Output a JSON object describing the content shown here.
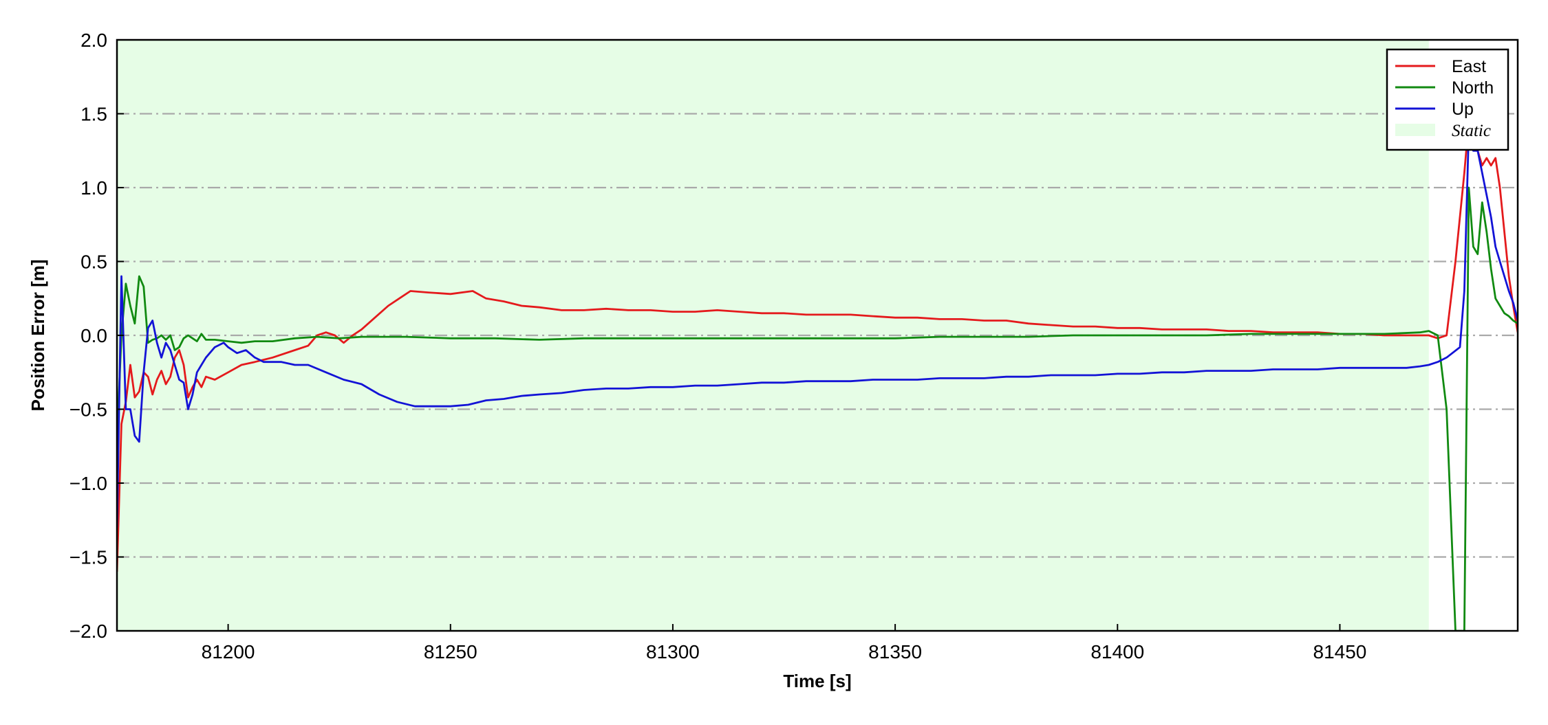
{
  "chart_data": {
    "type": "line",
    "xlabel": "Time [s]",
    "ylabel": "Position Error [m]",
    "xlim": [
      81175,
      81490
    ],
    "ylim": [
      -2.0,
      2.0
    ],
    "xticks": [
      81200,
      81250,
      81300,
      81350,
      81400,
      81450
    ],
    "xtick_labels": [
      "81200",
      "81250",
      "81300",
      "81350",
      "81400",
      "81450"
    ],
    "yticks": [
      2.0,
      1.5,
      1.0,
      0.5,
      0.0,
      -0.5,
      -1.0,
      -1.5,
      -2.0
    ],
    "ytick_labels": [
      "2.0",
      "1.5",
      "1.0",
      "0.5",
      "0.0",
      "−0.5",
      "−1.0",
      "−1.5",
      "−2.0"
    ],
    "grid": "horizontal dash-dot",
    "legend_position": "top-right",
    "shaded_regions": [
      {
        "label": "Static",
        "x_start": 81175,
        "x_end": 81470,
        "color": "#e6fde6"
      }
    ],
    "series": [
      {
        "name": "East",
        "color": "#e41a1c",
        "points": [
          [
            81175,
            -1.6
          ],
          [
            81176,
            -0.6
          ],
          [
            81177,
            -0.45
          ],
          [
            81178,
            -0.2
          ],
          [
            81179,
            -0.42
          ],
          [
            81180,
            -0.38
          ],
          [
            81181,
            -0.25
          ],
          [
            81182,
            -0.28
          ],
          [
            81183,
            -0.4
          ],
          [
            81184,
            -0.3
          ],
          [
            81185,
            -0.24
          ],
          [
            81186,
            -0.33
          ],
          [
            81187,
            -0.28
          ],
          [
            81188,
            -0.15
          ],
          [
            81189,
            -0.1
          ],
          [
            81190,
            -0.2
          ],
          [
            81191,
            -0.42
          ],
          [
            81192,
            -0.35
          ],
          [
            81193,
            -0.3
          ],
          [
            81194,
            -0.35
          ],
          [
            81195,
            -0.28
          ],
          [
            81197,
            -0.3
          ],
          [
            81200,
            -0.25
          ],
          [
            81203,
            -0.2
          ],
          [
            81206,
            -0.18
          ],
          [
            81210,
            -0.15
          ],
          [
            81215,
            -0.1
          ],
          [
            81218,
            -0.07
          ],
          [
            81220,
            0.0
          ],
          [
            81222,
            0.02
          ],
          [
            81224,
            0.0
          ],
          [
            81226,
            -0.05
          ],
          [
            81228,
            0.0
          ],
          [
            81230,
            0.04
          ],
          [
            81233,
            0.12
          ],
          [
            81236,
            0.2
          ],
          [
            81239,
            0.26
          ],
          [
            81241,
            0.3
          ],
          [
            81245,
            0.29
          ],
          [
            81250,
            0.28
          ],
          [
            81255,
            0.3
          ],
          [
            81258,
            0.25
          ],
          [
            81262,
            0.23
          ],
          [
            81266,
            0.2
          ],
          [
            81270,
            0.19
          ],
          [
            81275,
            0.17
          ],
          [
            81280,
            0.17
          ],
          [
            81285,
            0.18
          ],
          [
            81290,
            0.17
          ],
          [
            81295,
            0.17
          ],
          [
            81300,
            0.16
          ],
          [
            81305,
            0.16
          ],
          [
            81310,
            0.17
          ],
          [
            81315,
            0.16
          ],
          [
            81320,
            0.15
          ],
          [
            81325,
            0.15
          ],
          [
            81330,
            0.14
          ],
          [
            81335,
            0.14
          ],
          [
            81340,
            0.14
          ],
          [
            81345,
            0.13
          ],
          [
            81350,
            0.12
          ],
          [
            81355,
            0.12
          ],
          [
            81360,
            0.11
          ],
          [
            81365,
            0.11
          ],
          [
            81370,
            0.1
          ],
          [
            81375,
            0.1
          ],
          [
            81380,
            0.08
          ],
          [
            81385,
            0.07
          ],
          [
            81390,
            0.06
          ],
          [
            81395,
            0.06
          ],
          [
            81400,
            0.05
          ],
          [
            81405,
            0.05
          ],
          [
            81410,
            0.04
          ],
          [
            81415,
            0.04
          ],
          [
            81420,
            0.04
          ],
          [
            81425,
            0.03
          ],
          [
            81430,
            0.03
          ],
          [
            81435,
            0.02
          ],
          [
            81440,
            0.02
          ],
          [
            81445,
            0.02
          ],
          [
            81450,
            0.01
          ],
          [
            81455,
            0.01
          ],
          [
            81460,
            0.0
          ],
          [
            81465,
            0.0
          ],
          [
            81470,
            0.0
          ],
          [
            81472,
            -0.02
          ],
          [
            81474,
            0.0
          ],
          [
            81476,
            0.5
          ],
          [
            81478,
            1.1
          ],
          [
            81479,
            1.45
          ],
          [
            81480,
            1.3
          ],
          [
            81481,
            1.25
          ],
          [
            81482,
            1.15
          ],
          [
            81483,
            1.2
          ],
          [
            81484,
            1.15
          ],
          [
            81485,
            1.2
          ],
          [
            81486,
            1.0
          ],
          [
            81487,
            0.7
          ],
          [
            81488,
            0.4
          ],
          [
            81489,
            0.2
          ],
          [
            81490,
            0.02
          ]
        ]
      },
      {
        "name": "North",
        "color": "#118a11",
        "points": [
          [
            81175,
            -0.7
          ],
          [
            81176,
            0.0
          ],
          [
            81177,
            0.35
          ],
          [
            81178,
            0.2
          ],
          [
            81179,
            0.08
          ],
          [
            81180,
            0.4
          ],
          [
            81181,
            0.33
          ],
          [
            81182,
            -0.05
          ],
          [
            81183,
            -0.03
          ],
          [
            81184,
            -0.02
          ],
          [
            81185,
            0.0
          ],
          [
            81186,
            -0.03
          ],
          [
            81187,
            0.0
          ],
          [
            81188,
            -0.1
          ],
          [
            81189,
            -0.08
          ],
          [
            81190,
            -0.02
          ],
          [
            81191,
            0.0
          ],
          [
            81192,
            -0.02
          ],
          [
            81193,
            -0.04
          ],
          [
            81194,
            0.01
          ],
          [
            81195,
            -0.03
          ],
          [
            81197,
            -0.03
          ],
          [
            81200,
            -0.04
          ],
          [
            81203,
            -0.05
          ],
          [
            81206,
            -0.04
          ],
          [
            81210,
            -0.04
          ],
          [
            81215,
            -0.02
          ],
          [
            81220,
            -0.01
          ],
          [
            81225,
            -0.02
          ],
          [
            81230,
            -0.01
          ],
          [
            81240,
            -0.01
          ],
          [
            81250,
            -0.02
          ],
          [
            81260,
            -0.02
          ],
          [
            81270,
            -0.03
          ],
          [
            81280,
            -0.02
          ],
          [
            81290,
            -0.02
          ],
          [
            81300,
            -0.02
          ],
          [
            81310,
            -0.02
          ],
          [
            81320,
            -0.02
          ],
          [
            81330,
            -0.02
          ],
          [
            81340,
            -0.02
          ],
          [
            81350,
            -0.02
          ],
          [
            81360,
            -0.01
          ],
          [
            81370,
            -0.01
          ],
          [
            81380,
            -0.01
          ],
          [
            81390,
            0.0
          ],
          [
            81400,
            0.0
          ],
          [
            81410,
            0.0
          ],
          [
            81420,
            0.0
          ],
          [
            81430,
            0.01
          ],
          [
            81440,
            0.01
          ],
          [
            81450,
            0.01
          ],
          [
            81460,
            0.01
          ],
          [
            81468,
            0.02
          ],
          [
            81470,
            0.03
          ],
          [
            81472,
            0.0
          ],
          [
            81474,
            -0.5
          ],
          [
            81476,
            -2.0
          ],
          [
            81478,
            -2.0
          ],
          [
            81479,
            1.0
          ],
          [
            81480,
            0.6
          ],
          [
            81481,
            0.55
          ],
          [
            81482,
            0.9
          ],
          [
            81483,
            0.7
          ],
          [
            81484,
            0.45
          ],
          [
            81485,
            0.25
          ],
          [
            81486,
            0.2
          ],
          [
            81487,
            0.15
          ],
          [
            81488,
            0.13
          ],
          [
            81489,
            0.1
          ],
          [
            81490,
            0.08
          ]
        ]
      },
      {
        "name": "Up",
        "color": "#1313d6",
        "points": [
          [
            81175,
            -1.3
          ],
          [
            81176,
            0.4
          ],
          [
            81177,
            -0.5
          ],
          [
            81178,
            -0.5
          ],
          [
            81179,
            -0.68
          ],
          [
            81180,
            -0.72
          ],
          [
            81181,
            -0.25
          ],
          [
            81182,
            0.05
          ],
          [
            81183,
            0.1
          ],
          [
            81184,
            -0.05
          ],
          [
            81185,
            -0.15
          ],
          [
            81186,
            -0.05
          ],
          [
            81187,
            -0.1
          ],
          [
            81188,
            -0.2
          ],
          [
            81189,
            -0.3
          ],
          [
            81190,
            -0.32
          ],
          [
            81191,
            -0.5
          ],
          [
            81192,
            -0.4
          ],
          [
            81193,
            -0.25
          ],
          [
            81194,
            -0.2
          ],
          [
            81195,
            -0.15
          ],
          [
            81197,
            -0.08
          ],
          [
            81199,
            -0.05
          ],
          [
            81200,
            -0.08
          ],
          [
            81202,
            -0.12
          ],
          [
            81204,
            -0.1
          ],
          [
            81206,
            -0.15
          ],
          [
            81208,
            -0.18
          ],
          [
            81212,
            -0.18
          ],
          [
            81215,
            -0.2
          ],
          [
            81218,
            -0.2
          ],
          [
            81222,
            -0.25
          ],
          [
            81226,
            -0.3
          ],
          [
            81230,
            -0.33
          ],
          [
            81234,
            -0.4
          ],
          [
            81238,
            -0.45
          ],
          [
            81242,
            -0.48
          ],
          [
            81246,
            -0.48
          ],
          [
            81250,
            -0.48
          ],
          [
            81254,
            -0.47
          ],
          [
            81258,
            -0.44
          ],
          [
            81262,
            -0.43
          ],
          [
            81266,
            -0.41
          ],
          [
            81270,
            -0.4
          ],
          [
            81275,
            -0.39
          ],
          [
            81280,
            -0.37
          ],
          [
            81285,
            -0.36
          ],
          [
            81290,
            -0.36
          ],
          [
            81295,
            -0.35
          ],
          [
            81300,
            -0.35
          ],
          [
            81305,
            -0.34
          ],
          [
            81310,
            -0.34
          ],
          [
            81315,
            -0.33
          ],
          [
            81320,
            -0.32
          ],
          [
            81325,
            -0.32
          ],
          [
            81330,
            -0.31
          ],
          [
            81335,
            -0.31
          ],
          [
            81340,
            -0.31
          ],
          [
            81345,
            -0.3
          ],
          [
            81350,
            -0.3
          ],
          [
            81355,
            -0.3
          ],
          [
            81360,
            -0.29
          ],
          [
            81365,
            -0.29
          ],
          [
            81370,
            -0.29
          ],
          [
            81375,
            -0.28
          ],
          [
            81380,
            -0.28
          ],
          [
            81385,
            -0.27
          ],
          [
            81390,
            -0.27
          ],
          [
            81395,
            -0.27
          ],
          [
            81400,
            -0.26
          ],
          [
            81405,
            -0.26
          ],
          [
            81410,
            -0.25
          ],
          [
            81415,
            -0.25
          ],
          [
            81420,
            -0.24
          ],
          [
            81425,
            -0.24
          ],
          [
            81430,
            -0.24
          ],
          [
            81435,
            -0.23
          ],
          [
            81440,
            -0.23
          ],
          [
            81445,
            -0.23
          ],
          [
            81450,
            -0.22
          ],
          [
            81455,
            -0.22
          ],
          [
            81460,
            -0.22
          ],
          [
            81465,
            -0.22
          ],
          [
            81468,
            -0.21
          ],
          [
            81470,
            -0.2
          ],
          [
            81472,
            -0.18
          ],
          [
            81474,
            -0.15
          ],
          [
            81477,
            -0.08
          ],
          [
            81478,
            0.3
          ],
          [
            81479,
            1.4
          ],
          [
            81480,
            1.25
          ],
          [
            81481,
            1.25
          ],
          [
            81482,
            1.1
          ],
          [
            81483,
            0.95
          ],
          [
            81484,
            0.8
          ],
          [
            81485,
            0.6
          ],
          [
            81486,
            0.5
          ],
          [
            81487,
            0.4
          ],
          [
            81488,
            0.3
          ],
          [
            81489,
            0.22
          ],
          [
            81490,
            0.1
          ]
        ]
      }
    ]
  }
}
